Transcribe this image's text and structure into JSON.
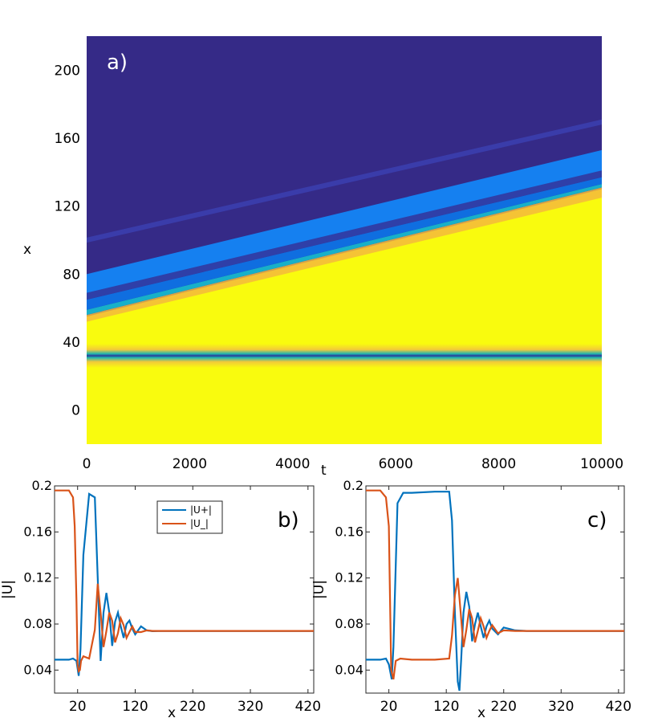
{
  "colors": {
    "dark_blue": "#352a87",
    "yellow": "#f9fb0e",
    "blue_line": "#0072bd",
    "orange_line": "#d95319"
  },
  "chart_data": [
    {
      "panel": "a)",
      "type": "heatmap",
      "xlabel": "t",
      "ylabel": "x",
      "xlim": [
        0,
        10000
      ],
      "ylim": [
        -20,
        220
      ],
      "x_ticks": [
        "0",
        "2000",
        "4000",
        "6000",
        "8000",
        "10000"
      ],
      "y_ticks": [
        "0",
        "40",
        "80",
        "120",
        "160",
        "200"
      ],
      "colorscale": "parula",
      "features": {
        "stationary_dark_band": {
          "x_center": 32
        },
        "front": {
          "x_at_t0": 55,
          "x_at_t10000": 130
        },
        "blue_band": {
          "x_at_t0": 68,
          "x_at_t10000": 140
        },
        "faint_line": {
          "x_at_t0": 100,
          "x_at_t10000": 170
        }
      }
    },
    {
      "panel": "b)",
      "type": "line",
      "xlabel": "x",
      "ylabel": "|U|",
      "xlim": [
        -20,
        430
      ],
      "ylim": [
        0.02,
        0.2
      ],
      "x_ticks": [
        "20",
        "120",
        "220",
        "320",
        "420"
      ],
      "y_ticks": [
        "0.04",
        "0.08",
        "0.12",
        "0.16",
        "0.2"
      ],
      "legend": [
        "|U+|",
        "|U_|"
      ],
      "series": [
        {
          "name": "|U+|",
          "x": [
            -20,
            5,
            12,
            18,
            22,
            25,
            30,
            40,
            50,
            55,
            60,
            65,
            70,
            75,
            80,
            85,
            90,
            95,
            100,
            105,
            110,
            115,
            120,
            130,
            140,
            150,
            160,
            180,
            200,
            250,
            300,
            350,
            430
          ],
          "values": [
            0.049,
            0.049,
            0.05,
            0.048,
            0.035,
            0.058,
            0.14,
            0.193,
            0.19,
            0.12,
            0.048,
            0.09,
            0.107,
            0.09,
            0.061,
            0.082,
            0.09,
            0.078,
            0.068,
            0.08,
            0.083,
            0.076,
            0.071,
            0.078,
            0.0745,
            0.0738,
            0.074,
            0.074,
            0.074,
            0.074,
            0.074,
            0.074,
            0.074
          ]
        },
        {
          "name": "|U_|",
          "x": [
            -20,
            5,
            12,
            15,
            18,
            20,
            22,
            24,
            26,
            30,
            40,
            50,
            55,
            60,
            65,
            70,
            75,
            80,
            85,
            90,
            95,
            100,
            105,
            110,
            115,
            120,
            130,
            140,
            150,
            160,
            180,
            200,
            250,
            300,
            350,
            430
          ],
          "values": [
            0.196,
            0.196,
            0.19,
            0.165,
            0.1,
            0.045,
            0.039,
            0.04,
            0.048,
            0.052,
            0.05,
            0.075,
            0.115,
            0.09,
            0.06,
            0.074,
            0.09,
            0.083,
            0.064,
            0.072,
            0.085,
            0.079,
            0.068,
            0.073,
            0.078,
            0.073,
            0.073,
            0.0745,
            0.074,
            0.074,
            0.074,
            0.074,
            0.074,
            0.074,
            0.074,
            0.074
          ]
        }
      ]
    },
    {
      "panel": "c)",
      "type": "line",
      "xlabel": "x",
      "ylabel": "|U|",
      "xlim": [
        -20,
        430
      ],
      "ylim": [
        0.02,
        0.2
      ],
      "x_ticks": [
        "20",
        "120",
        "220",
        "320",
        "420"
      ],
      "y_ticks": [
        "0.04",
        "0.08",
        "0.12",
        "0.16",
        "0.2"
      ],
      "series": [
        {
          "name": "|U+|",
          "x": [
            -20,
            5,
            15,
            20,
            25,
            28,
            35,
            45,
            60,
            100,
            125,
            130,
            135,
            140,
            143,
            146,
            150,
            155,
            160,
            165,
            170,
            175,
            180,
            185,
            190,
            195,
            200,
            210,
            220,
            240,
            260,
            300,
            350,
            430
          ],
          "values": [
            0.049,
            0.049,
            0.05,
            0.045,
            0.032,
            0.06,
            0.185,
            0.194,
            0.194,
            0.195,
            0.195,
            0.17,
            0.09,
            0.03,
            0.022,
            0.05,
            0.09,
            0.108,
            0.095,
            0.065,
            0.08,
            0.09,
            0.078,
            0.068,
            0.078,
            0.083,
            0.076,
            0.071,
            0.077,
            0.0745,
            0.074,
            0.074,
            0.074,
            0.074
          ]
        },
        {
          "name": "|U_|",
          "x": [
            -20,
            5,
            15,
            20,
            24,
            28,
            32,
            40,
            60,
            100,
            125,
            130,
            135,
            140,
            145,
            150,
            155,
            160,
            165,
            170,
            175,
            180,
            185,
            190,
            195,
            200,
            210,
            220,
            240,
            260,
            300,
            350,
            430
          ],
          "values": [
            0.196,
            0.196,
            0.19,
            0.165,
            0.04,
            0.032,
            0.048,
            0.05,
            0.049,
            0.049,
            0.05,
            0.07,
            0.105,
            0.12,
            0.09,
            0.06,
            0.075,
            0.093,
            0.085,
            0.064,
            0.074,
            0.085,
            0.078,
            0.068,
            0.074,
            0.079,
            0.072,
            0.0745,
            0.074,
            0.074,
            0.074,
            0.074,
            0.074
          ]
        }
      ]
    }
  ]
}
